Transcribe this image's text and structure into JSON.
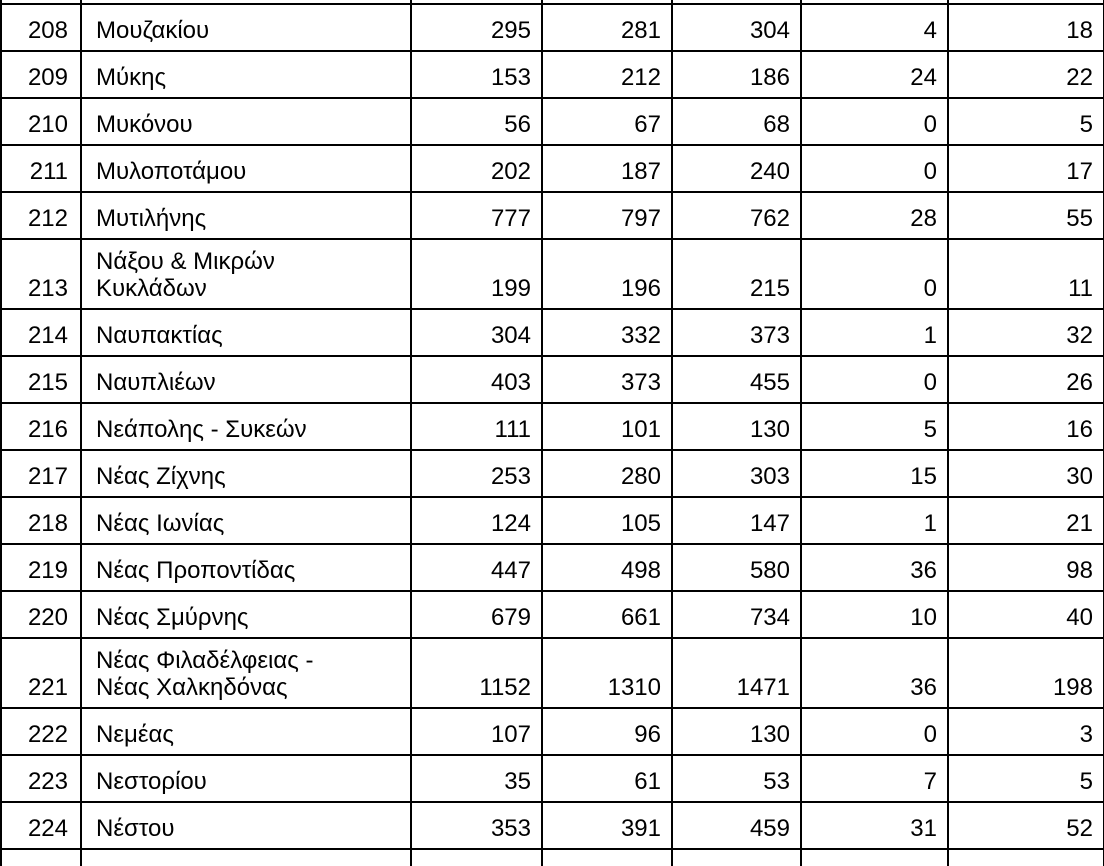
{
  "document": {
    "language": "el",
    "description_label": "municipality-statistics-table"
  },
  "table": {
    "rows": [
      {
        "id": "208",
        "name": "Μουζακίου",
        "values": [
          "295",
          "281",
          "304",
          "4",
          "18"
        ],
        "tall": false
      },
      {
        "id": "209",
        "name": "Μύκης",
        "values": [
          "153",
          "212",
          "186",
          "24",
          "22"
        ],
        "tall": false
      },
      {
        "id": "210",
        "name": "Μυκόνου",
        "values": [
          "56",
          "67",
          "68",
          "0",
          "5"
        ],
        "tall": false
      },
      {
        "id": "211",
        "name": "Μυλοποτάμου",
        "values": [
          "202",
          "187",
          "240",
          "0",
          "17"
        ],
        "tall": false
      },
      {
        "id": "212",
        "name": "Μυτιλήνης",
        "values": [
          "777",
          "797",
          "762",
          "28",
          "55"
        ],
        "tall": false
      },
      {
        "id": "213",
        "name": "Νάξου & Μικρών\nΚυκλάδων",
        "values": [
          "199",
          "196",
          "215",
          "0",
          "11"
        ],
        "tall": true
      },
      {
        "id": "214",
        "name": "Ναυπακτίας",
        "values": [
          "304",
          "332",
          "373",
          "1",
          "32"
        ],
        "tall": false
      },
      {
        "id": "215",
        "name": "Ναυπλιέων",
        "values": [
          "403",
          "373",
          "455",
          "0",
          "26"
        ],
        "tall": false
      },
      {
        "id": "216",
        "name": "Νεάπολης - Συκεών",
        "values": [
          "111",
          "101",
          "130",
          "5",
          "16"
        ],
        "tall": false
      },
      {
        "id": "217",
        "name": "Νέας Ζίχνης",
        "values": [
          "253",
          "280",
          "303",
          "15",
          "30"
        ],
        "tall": false
      },
      {
        "id": "218",
        "name": "Νέας Ιωνίας",
        "values": [
          "124",
          "105",
          "147",
          "1",
          "21"
        ],
        "tall": false
      },
      {
        "id": "219",
        "name": "Νέας Προποντίδας",
        "values": [
          "447",
          "498",
          "580",
          "36",
          "98"
        ],
        "tall": false
      },
      {
        "id": "220",
        "name": "Νέας Σμύρνης",
        "values": [
          "679",
          "661",
          "734",
          "10",
          "40"
        ],
        "tall": false
      },
      {
        "id": "221",
        "name": "Νέας Φιλαδέλφειας -\nΝέας Χαλκηδόνας",
        "values": [
          "1152",
          "1310",
          "1471",
          "36",
          "198"
        ],
        "tall": true
      },
      {
        "id": "222",
        "name": "Νεμέας",
        "values": [
          "107",
          "96",
          "130",
          "0",
          "3"
        ],
        "tall": false
      },
      {
        "id": "223",
        "name": "Νεστορίου",
        "values": [
          "35",
          "61",
          "53",
          "7",
          "5"
        ],
        "tall": false
      },
      {
        "id": "224",
        "name": "Νέστου",
        "values": [
          "353",
          "391",
          "459",
          "31",
          "52"
        ],
        "tall": false
      }
    ],
    "colors": {
      "text": "#000000",
      "border": "#000000",
      "background": "#ffffff"
    }
  }
}
